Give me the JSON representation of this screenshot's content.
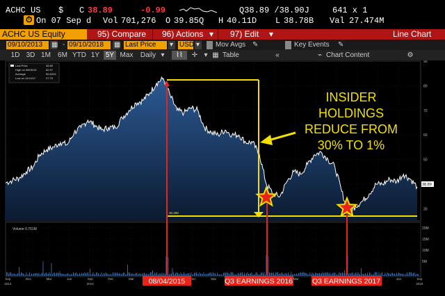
{
  "quote": {
    "ticker": "ACHC US",
    "currency": "$",
    "close_label": "C",
    "close": "38.89",
    "change": "-0.99",
    "bid_ask": "Q38.89 /38.90J",
    "size": "641 x 1",
    "date_label": "On 07 Sep d",
    "vol_label": "Vol",
    "volume": "701,276",
    "open_label": "O",
    "open": "39.85Q",
    "high_label": "H",
    "high": "40.11D",
    "low_label": "L",
    "low": "38.78B",
    "val_label": "Val",
    "value": "27.474M",
    "icon_chip": "⏱"
  },
  "menu": {
    "title": "ACHC US Equity",
    "compare": "95) Compare",
    "actions": "96) Actions",
    "edit": "97) Edit",
    "chart_type": "Line Chart"
  },
  "toolbar": {
    "start_date": "09/10/2013",
    "end_date": "09/10/2018",
    "field": "Last Price",
    "currency": "USD",
    "mov_avgs": "Mov Avgs",
    "key_events": "Key Events",
    "periods": [
      "1D",
      "3D",
      "1M",
      "6M",
      "YTD",
      "1Y",
      "5Y",
      "Max"
    ],
    "selected_period": "5Y",
    "frequency": "Daily",
    "table": "Table",
    "chart_content": "Chart Content"
  },
  "legend": {
    "last_price": "Last Price",
    "last_price_val": "38.89",
    "high": "High on 08/05/15",
    "high_val": "82.97",
    "average": "Average",
    "average_val": "50.6225",
    "low": "Low on 11/14/17",
    "low_val": "27.79"
  },
  "chart_data": {
    "type": "area",
    "y_axis": {
      "ticks": [
        30,
        40,
        50,
        60,
        70,
        80,
        90
      ],
      "range": [
        25,
        90
      ]
    },
    "volume_axis": {
      "ticks": [
        "20M",
        "15M",
        "10M",
        "5M"
      ]
    },
    "volume_label": "Volume 0.701M",
    "last_price_tag": "38.89",
    "low_line_label": "30.498",
    "x_month_ticks": [
      "Sep",
      "Dec",
      "Mar",
      "Jun",
      "Sep",
      "Dec",
      "Mar",
      "Jun",
      "Sep",
      "Dec",
      "Mar",
      "Jun",
      "Sep",
      "Dec",
      "Mar",
      "Jun",
      "Sep",
      "Dec",
      "Mar",
      "Jun",
      "Sep"
    ],
    "x_year_labels": [
      "2013",
      "2014",
      "2015",
      "2016",
      "2017",
      "2018"
    ],
    "price_series": [
      [
        "2013-09",
        40.5
      ],
      [
        "2013-10",
        41.5
      ],
      [
        "2013-11",
        42.5
      ],
      [
        "2013-12",
        45
      ],
      [
        "2014-01",
        47
      ],
      [
        "2014-02",
        52
      ],
      [
        "2014-03",
        54
      ],
      [
        "2014-04",
        55
      ],
      [
        "2014-05",
        57
      ],
      [
        "2014-06",
        56
      ],
      [
        "2014-07",
        61
      ],
      [
        "2014-08",
        63
      ],
      [
        "2014-09",
        66
      ],
      [
        "2014-10",
        64
      ],
      [
        "2014-11",
        62
      ],
      [
        "2014-12",
        63
      ],
      [
        "2015-01",
        63
      ],
      [
        "2015-02",
        67
      ],
      [
        "2015-03",
        70
      ],
      [
        "2015-04",
        73
      ],
      [
        "2015-05",
        74
      ],
      [
        "2015-06",
        77
      ],
      [
        "2015-07",
        81
      ],
      [
        "2015-08",
        82.97
      ],
      [
        "2015-09",
        76
      ],
      [
        "2015-10",
        70
      ],
      [
        "2015-11",
        69
      ],
      [
        "2015-12",
        71
      ],
      [
        "2016-01",
        70
      ],
      [
        "2016-02",
        63
      ],
      [
        "2016-03",
        61
      ],
      [
        "2016-04",
        60
      ],
      [
        "2016-05",
        62
      ],
      [
        "2016-06",
        60
      ],
      [
        "2016-07",
        60
      ],
      [
        "2016-08",
        57
      ],
      [
        "2016-09",
        57
      ],
      [
        "2016-10",
        52
      ],
      [
        "2016-11",
        40
      ],
      [
        "2016-12",
        36
      ],
      [
        "2017-01",
        35
      ],
      [
        "2017-02",
        41
      ],
      [
        "2017-03",
        45
      ],
      [
        "2017-04",
        44
      ],
      [
        "2017-05",
        48
      ],
      [
        "2017-06",
        52
      ],
      [
        "2017-07",
        53
      ],
      [
        "2017-08",
        50
      ],
      [
        "2017-09",
        47
      ],
      [
        "2017-10",
        37
      ],
      [
        "2017-11",
        27.79
      ],
      [
        "2017-12",
        31
      ],
      [
        "2018-01",
        33
      ],
      [
        "2018-02",
        36
      ],
      [
        "2018-03",
        40
      ],
      [
        "2018-04",
        40
      ],
      [
        "2018-05",
        42
      ],
      [
        "2018-06",
        41
      ],
      [
        "2018-07",
        44
      ],
      [
        "2018-08",
        42
      ],
      [
        "2018-09",
        38.89
      ]
    ]
  },
  "annotations": {
    "callout": [
      "INSIDER",
      "HOLDINGS",
      "REDUCE FROM",
      "30% TO 1%"
    ],
    "marker_1": "08/04/2015",
    "marker_2": "Q3 EARNINGS 2016",
    "marker_3": "Q3 EARNINGS 2017"
  },
  "colors": {
    "area_fill": "#1e3f6e",
    "line": "#ffffff",
    "annotation_yellow": "#f3e000",
    "annotation_red": "#e8231a",
    "bloomberg_orange": "#f0a000",
    "menu_red": "#b01515"
  }
}
